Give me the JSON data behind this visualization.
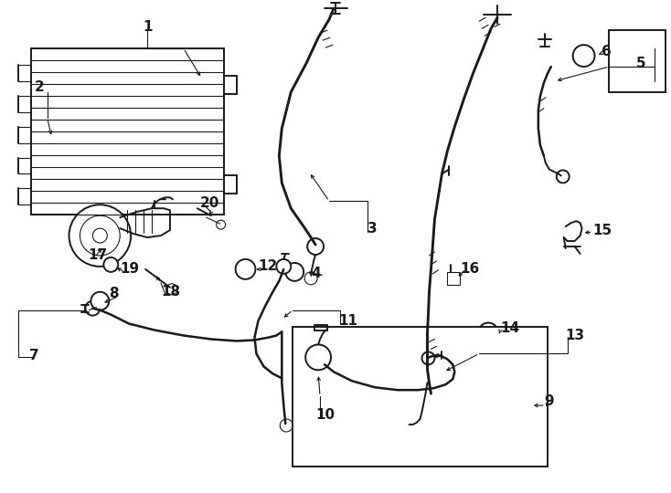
{
  "bg_color": "#ffffff",
  "lc": "#1a1a1a",
  "lw": 1.4,
  "tlw": 0.8,
  "fig_w": 7.34,
  "fig_h": 5.4,
  "dpi": 100
}
